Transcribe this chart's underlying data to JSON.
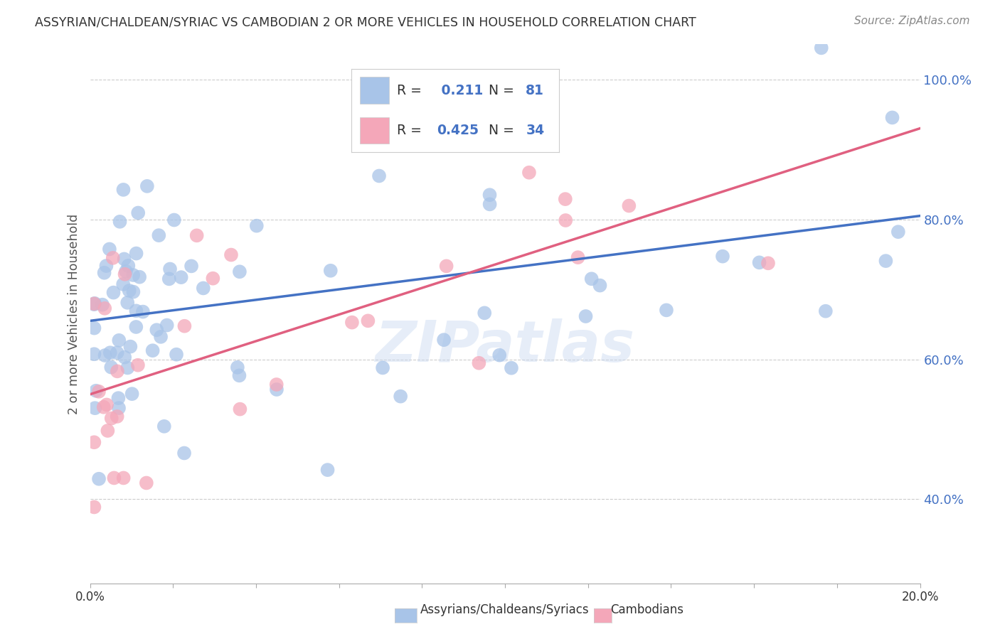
{
  "title": "ASSYRIAN/CHALDEAN/SYRIAC VS CAMBODIAN 2 OR MORE VEHICLES IN HOUSEHOLD CORRELATION CHART",
  "source_text": "Source: ZipAtlas.com",
  "ylabel": "2 or more Vehicles in Household",
  "xlim": [
    0.0,
    20.0
  ],
  "ylim": [
    28.0,
    105.0
  ],
  "yticks": [
    40.0,
    60.0,
    80.0,
    100.0
  ],
  "xticks": [
    0.0,
    2.0,
    4.0,
    6.0,
    8.0,
    10.0,
    12.0,
    14.0,
    16.0,
    18.0,
    20.0
  ],
  "blue_color": "#a8c4e8",
  "blue_line_color": "#4472c4",
  "pink_color": "#f4a7b9",
  "pink_line_color": "#e06080",
  "R_blue": 0.211,
  "N_blue": 81,
  "R_pink": 0.425,
  "N_pink": 34,
  "blue_line_x0": 0.0,
  "blue_line_y0": 65.5,
  "blue_line_x1": 20.0,
  "blue_line_y1": 80.5,
  "pink_line_x0": 0.0,
  "pink_line_y0": 55.0,
  "pink_line_x1": 20.0,
  "pink_line_y1": 93.0,
  "legend_R_color": "#4472c4",
  "watermark": "ZIPatlas",
  "background_color": "#ffffff",
  "grid_color": "#cccccc",
  "ylabel_color": "#555555",
  "tick_label_color": "#333333",
  "source_color": "#888888",
  "title_color": "#333333"
}
